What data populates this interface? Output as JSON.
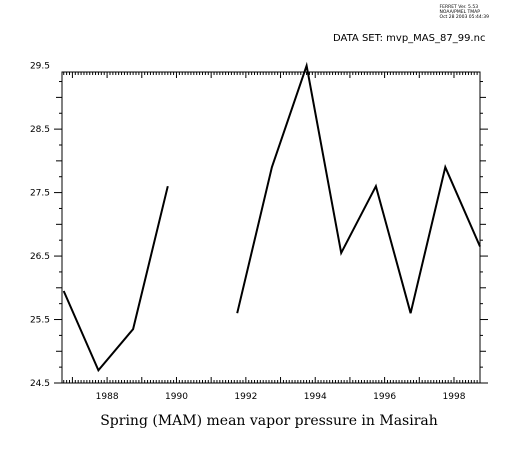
{
  "header": {
    "version_lines": [
      "FERRET Ver. 5.53",
      "NOAA/PMEL TMAP",
      "Oct 28 2003 05:44:39"
    ],
    "dataset_label": "DATA SET: mvp_MAS_87_99.nc"
  },
  "chart_data": {
    "type": "line",
    "title": "Spring (MAM) mean vapor pressure in Masirah",
    "xlabel": "",
    "ylabel": "",
    "xlim": [
      1986.7,
      1998.75
    ],
    "ylim": [
      24.5,
      29.4
    ],
    "x_ticks": [
      1988,
      1990,
      1992,
      1994,
      1996,
      1998
    ],
    "y_ticks": [
      24.5,
      25.5,
      26.5,
      27.5,
      28.5,
      29.5
    ],
    "y_tick_labels": [
      "24.5",
      "25.5",
      "26.5",
      "27.5",
      "28.5",
      "29.5"
    ],
    "series": [
      {
        "color": "#000000",
        "x": [
          1986.75,
          1987.75,
          1988.75,
          1989.75,
          1990.75,
          1991.75,
          1992.75,
          1993.75,
          1994.75,
          1995.75,
          1996.75,
          1997.75,
          1998.75
        ],
        "values": [
          25.95,
          24.7,
          25.35,
          27.6,
          null,
          25.6,
          27.9,
          29.5,
          26.55,
          27.6,
          25.6,
          27.9,
          26.65
        ]
      }
    ],
    "grid": false
  }
}
